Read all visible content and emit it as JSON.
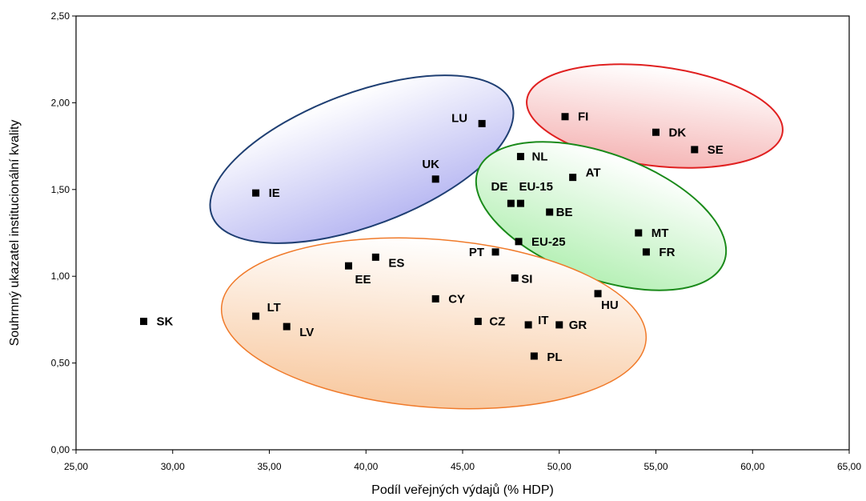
{
  "chart_data": {
    "type": "scatter",
    "title": "",
    "xlabel": "Podíl veřejných výdajů (% HDP)",
    "ylabel": "Souhrnný ukazatel institucionální kvality",
    "xlim": [
      25,
      65
    ],
    "ylim": [
      0,
      2.5
    ],
    "x_ticks": [
      "25,00",
      "30,00",
      "35,00",
      "40,00",
      "45,00",
      "50,00",
      "55,00",
      "60,00",
      "65,00"
    ],
    "y_ticks": [
      "0,00",
      "0,50",
      "1,00",
      "1,50",
      "2,00",
      "2,50"
    ],
    "grid": false,
    "legend": "none",
    "marker_color": "#000000",
    "points": [
      {
        "label": "SK",
        "x": 28.5,
        "y": 0.74
      },
      {
        "label": "IE",
        "x": 34.3,
        "y": 1.48
      },
      {
        "label": "LT",
        "x": 34.3,
        "y": 0.77
      },
      {
        "label": "LV",
        "x": 35.9,
        "y": 0.71
      },
      {
        "label": "EE",
        "x": 39.1,
        "y": 1.06
      },
      {
        "label": "ES",
        "x": 40.5,
        "y": 1.11
      },
      {
        "label": "UK",
        "x": 43.6,
        "y": 1.56
      },
      {
        "label": "CY",
        "x": 43.6,
        "y": 0.87
      },
      {
        "label": "CZ",
        "x": 45.8,
        "y": 0.74
      },
      {
        "label": "LU",
        "x": 46.0,
        "y": 1.88
      },
      {
        "label": "PT",
        "x": 46.7,
        "y": 1.14
      },
      {
        "label": "DE",
        "x": 47.5,
        "y": 1.42
      },
      {
        "label": "SI",
        "x": 47.7,
        "y": 0.99
      },
      {
        "label": "EU-15",
        "x": 48.0,
        "y": 1.42
      },
      {
        "label": "NL",
        "x": 48.0,
        "y": 1.69
      },
      {
        "label": "EU-25",
        "x": 47.9,
        "y": 1.2
      },
      {
        "label": "IT",
        "x": 48.4,
        "y": 0.72
      },
      {
        "label": "PL",
        "x": 48.7,
        "y": 0.54
      },
      {
        "label": "BE",
        "x": 49.5,
        "y": 1.37
      },
      {
        "label": "GR",
        "x": 50.0,
        "y": 0.72
      },
      {
        "label": "FI",
        "x": 50.3,
        "y": 1.92
      },
      {
        "label": "AT",
        "x": 50.7,
        "y": 1.57
      },
      {
        "label": "HU",
        "x": 52.0,
        "y": 0.9
      },
      {
        "label": "MT",
        "x": 54.1,
        "y": 1.25
      },
      {
        "label": "FR",
        "x": 54.5,
        "y": 1.14
      },
      {
        "label": "DK",
        "x": 55.0,
        "y": 1.83
      },
      {
        "label": "SE",
        "x": 57.0,
        "y": 1.73
      }
    ],
    "groups": [
      {
        "color": "#1f3f73",
        "fill": "#b9b9f2"
      },
      {
        "color": "#e02020",
        "fill": "#f5b6b6"
      },
      {
        "color": "#1a8a1a",
        "fill": "#b6f0b6"
      },
      {
        "color": "#f07a2a",
        "fill": "#f8c9a0"
      }
    ]
  }
}
